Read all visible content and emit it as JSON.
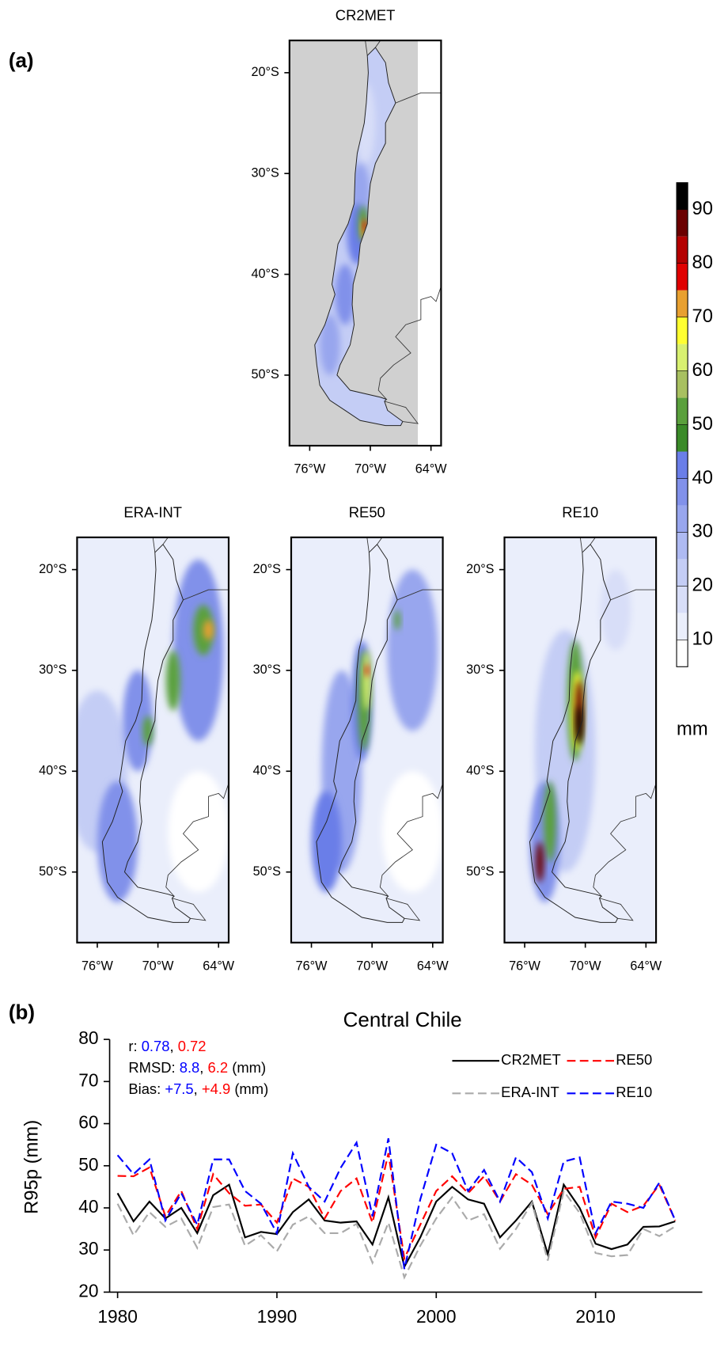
{
  "panel_labels": [
    "(a)",
    "(b)"
  ],
  "maps": {
    "xlim": [
      -78,
      -63
    ],
    "ylim": [
      -57,
      -16.8
    ],
    "xticks": [
      {
        "value": -76,
        "label": "76°W"
      },
      {
        "value": -70,
        "label": "70°W"
      },
      {
        "value": -64,
        "label": "64°W"
      }
    ],
    "yticks": [
      {
        "value": -20,
        "label": "20°S"
      },
      {
        "value": -30,
        "label": "30°S"
      },
      {
        "value": -40,
        "label": "40°S"
      },
      {
        "value": -50,
        "label": "50°S"
      }
    ],
    "panels": [
      {
        "title": "CR2MET"
      },
      {
        "title": "ERA-INT"
      },
      {
        "title": "RE50"
      },
      {
        "title": "RE10"
      }
    ],
    "colorbar": {
      "lim": [
        5,
        95
      ],
      "ticks": [
        10,
        20,
        30,
        40,
        50,
        60,
        70,
        80,
        90
      ],
      "unit": "mm",
      "colors": [
        "#ffffff",
        "#eaeefb",
        "#d8def8",
        "#c4cdf5",
        "#aebaf2",
        "#98a6ee",
        "#8191ea",
        "#6a7ee8",
        "#3a8a28",
        "#5aa03c",
        "#a8c060",
        "#d8f070",
        "#ffff30",
        "#e8a030",
        "#e00000",
        "#b40000",
        "#6b0000",
        "#000000"
      ]
    }
  },
  "chart_data": {
    "type": "line",
    "title": "Central Chile",
    "ylabel": "R95p (mm)",
    "x": [
      1980,
      1981,
      1982,
      1983,
      1984,
      1985,
      1986,
      1987,
      1988,
      1989,
      1990,
      1991,
      1992,
      1993,
      1994,
      1995,
      1996,
      1997,
      1998,
      1999,
      2000,
      2001,
      2002,
      2003,
      2004,
      2005,
      2006,
      2007,
      2008,
      2009,
      2010,
      2011,
      2012,
      2013,
      2014,
      2015
    ],
    "xlim": [
      1979.5,
      2016.7
    ],
    "xticks": [
      1980,
      1990,
      2000,
      2010
    ],
    "ylim": [
      20,
      80
    ],
    "yticks": [
      20,
      30,
      40,
      50,
      60,
      70,
      80
    ],
    "legend": "upper right",
    "series": [
      {
        "name": "CR2MET",
        "color": "#000000",
        "line_style": "solid",
        "values": [
          43.5,
          36.8,
          41.5,
          37.5,
          40.0,
          34.0,
          43.0,
          45.5,
          33.0,
          34.3,
          33.8,
          39.0,
          42.0,
          37.0,
          36.5,
          36.8,
          31.3,
          42.5,
          26.0,
          33.0,
          41.5,
          45.0,
          42.0,
          41.0,
          33.0,
          37.0,
          41.5,
          29.0,
          45.5,
          40.0,
          31.5,
          30.2,
          31.3,
          35.5,
          35.6,
          36.8
        ]
      },
      {
        "name": "ERA-INT",
        "color": "#aaaaaa",
        "line_style": "dashed",
        "values": [
          41.0,
          33.5,
          39.0,
          35.5,
          37.5,
          30.5,
          40.2,
          40.8,
          31.0,
          33.5,
          29.7,
          36.0,
          38.0,
          34.0,
          34.0,
          36.2,
          27.0,
          36.5,
          23.5,
          31.0,
          37.5,
          42.5,
          37.0,
          38.5,
          30.3,
          35.0,
          41.2,
          27.5,
          44.0,
          38.8,
          29.3,
          28.5,
          28.8,
          35.0,
          33.3,
          35.6
        ]
      },
      {
        "name": "RE50",
        "color": "#ff0000",
        "line_style": "dashed",
        "values": [
          47.6,
          47.5,
          49.6,
          38.0,
          44.0,
          35.0,
          48.0,
          43.5,
          40.5,
          40.8,
          36.5,
          47.0,
          45.0,
          37.5,
          44.0,
          47.0,
          36.5,
          53.0,
          28.0,
          36.0,
          44.0,
          47.5,
          43.5,
          47.5,
          41.5,
          48.0,
          45.5,
          38.5,
          44.5,
          45.0,
          33.0,
          41.0,
          39.0,
          40.5,
          45.5,
          37.0
        ]
      },
      {
        "name": "RE10",
        "color": "#0000ff",
        "line_style": "dashed",
        "values": [
          52.5,
          48.0,
          51.5,
          37.0,
          43.5,
          36.0,
          51.5,
          51.5,
          44.0,
          41.0,
          34.0,
          53.0,
          45.0,
          41.5,
          49.5,
          55.5,
          38.0,
          56.5,
          25.5,
          42.0,
          55.0,
          53.0,
          44.0,
          49.0,
          41.5,
          52.0,
          48.5,
          37.5,
          51.0,
          52.0,
          34.0,
          41.5,
          41.0,
          40.0,
          46.0,
          37.0
        ]
      }
    ],
    "annotations": [
      [
        {
          "text": "r: "
        },
        {
          "text": "0.78",
          "color": "#0000ff"
        },
        {
          "text": ", "
        },
        {
          "text": "0.72",
          "color": "#ff0000"
        }
      ],
      [
        {
          "text": "RMSD: "
        },
        {
          "text": "8.8",
          "color": "#0000ff"
        },
        {
          "text": ", "
        },
        {
          "text": "6.2",
          "color": "#ff0000"
        },
        {
          "text": " (mm)"
        }
      ],
      [
        {
          "text": "Bias: "
        },
        {
          "text": "+7.5",
          "color": "#0000ff"
        },
        {
          "text": ", "
        },
        {
          "text": "+4.9",
          "color": "#ff0000"
        },
        {
          "text": " (mm)"
        }
      ]
    ]
  }
}
